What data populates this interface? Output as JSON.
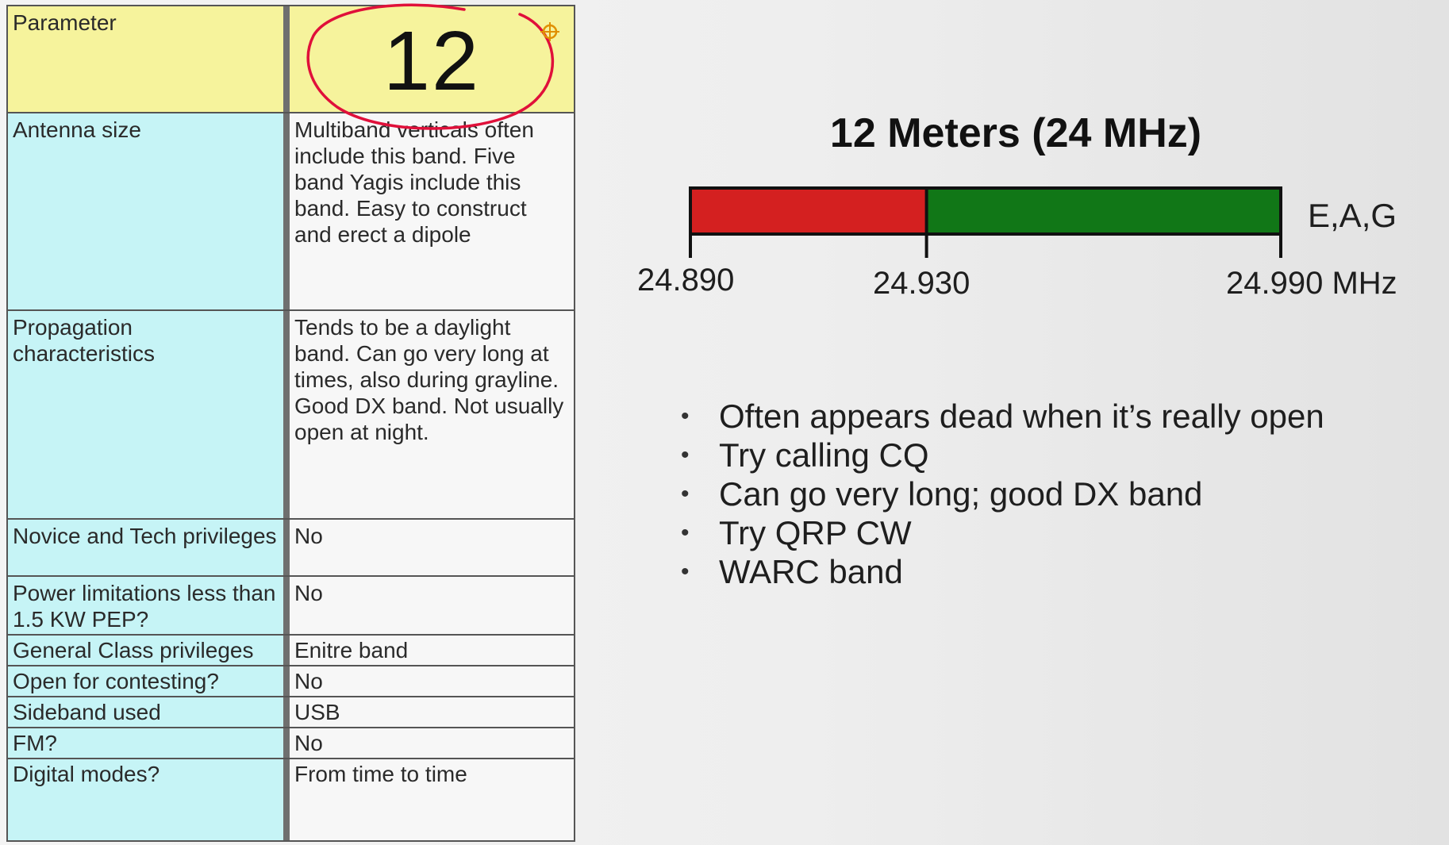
{
  "table": {
    "header": {
      "label": "Parameter",
      "value": "12"
    },
    "rows": [
      {
        "label": "Antenna size",
        "value": "Multiband verticals often include this band. Five band Yagis include this band. Easy to construct and erect a dipole"
      },
      {
        "label": "Propagation characteristics",
        "value": "Tends to be a daylight band. Can go very long at times, also during grayline. Good DX band. Not usually open at night."
      },
      {
        "label": "Novice and Tech privileges",
        "value": "No"
      },
      {
        "label": "Power limitations less than 1.5 KW PEP?",
        "value": "No"
      },
      {
        "label": "General Class privileges",
        "value": "Enitre band"
      },
      {
        "label": "Open for contesting?",
        "value": "No"
      },
      {
        "label": "Sideband used",
        "value": "USB"
      },
      {
        "label": "FM?",
        "value": "No"
      },
      {
        "label": "Digital modes?",
        "value": "From time to time"
      }
    ]
  },
  "band": {
    "title": "12 Meters (24 MHz)",
    "segments": [
      {
        "from": 24.89,
        "to": 24.93,
        "color": "#d42020"
      },
      {
        "from": 24.93,
        "to": 24.99,
        "color": "#117717"
      }
    ],
    "range": [
      24.89,
      24.99
    ],
    "ticks": [
      "24.890",
      "24.930",
      "24.990 MHz"
    ],
    "privileges": "E,A,G"
  },
  "bullets": [
    "Often appears dead when it’s really open",
    "Try calling CQ",
    "Can go very long; good DX band",
    "Try QRP CW",
    "WARC band"
  ],
  "annotation": {
    "color": "#e0103a",
    "cursor_color": "#e09000"
  }
}
